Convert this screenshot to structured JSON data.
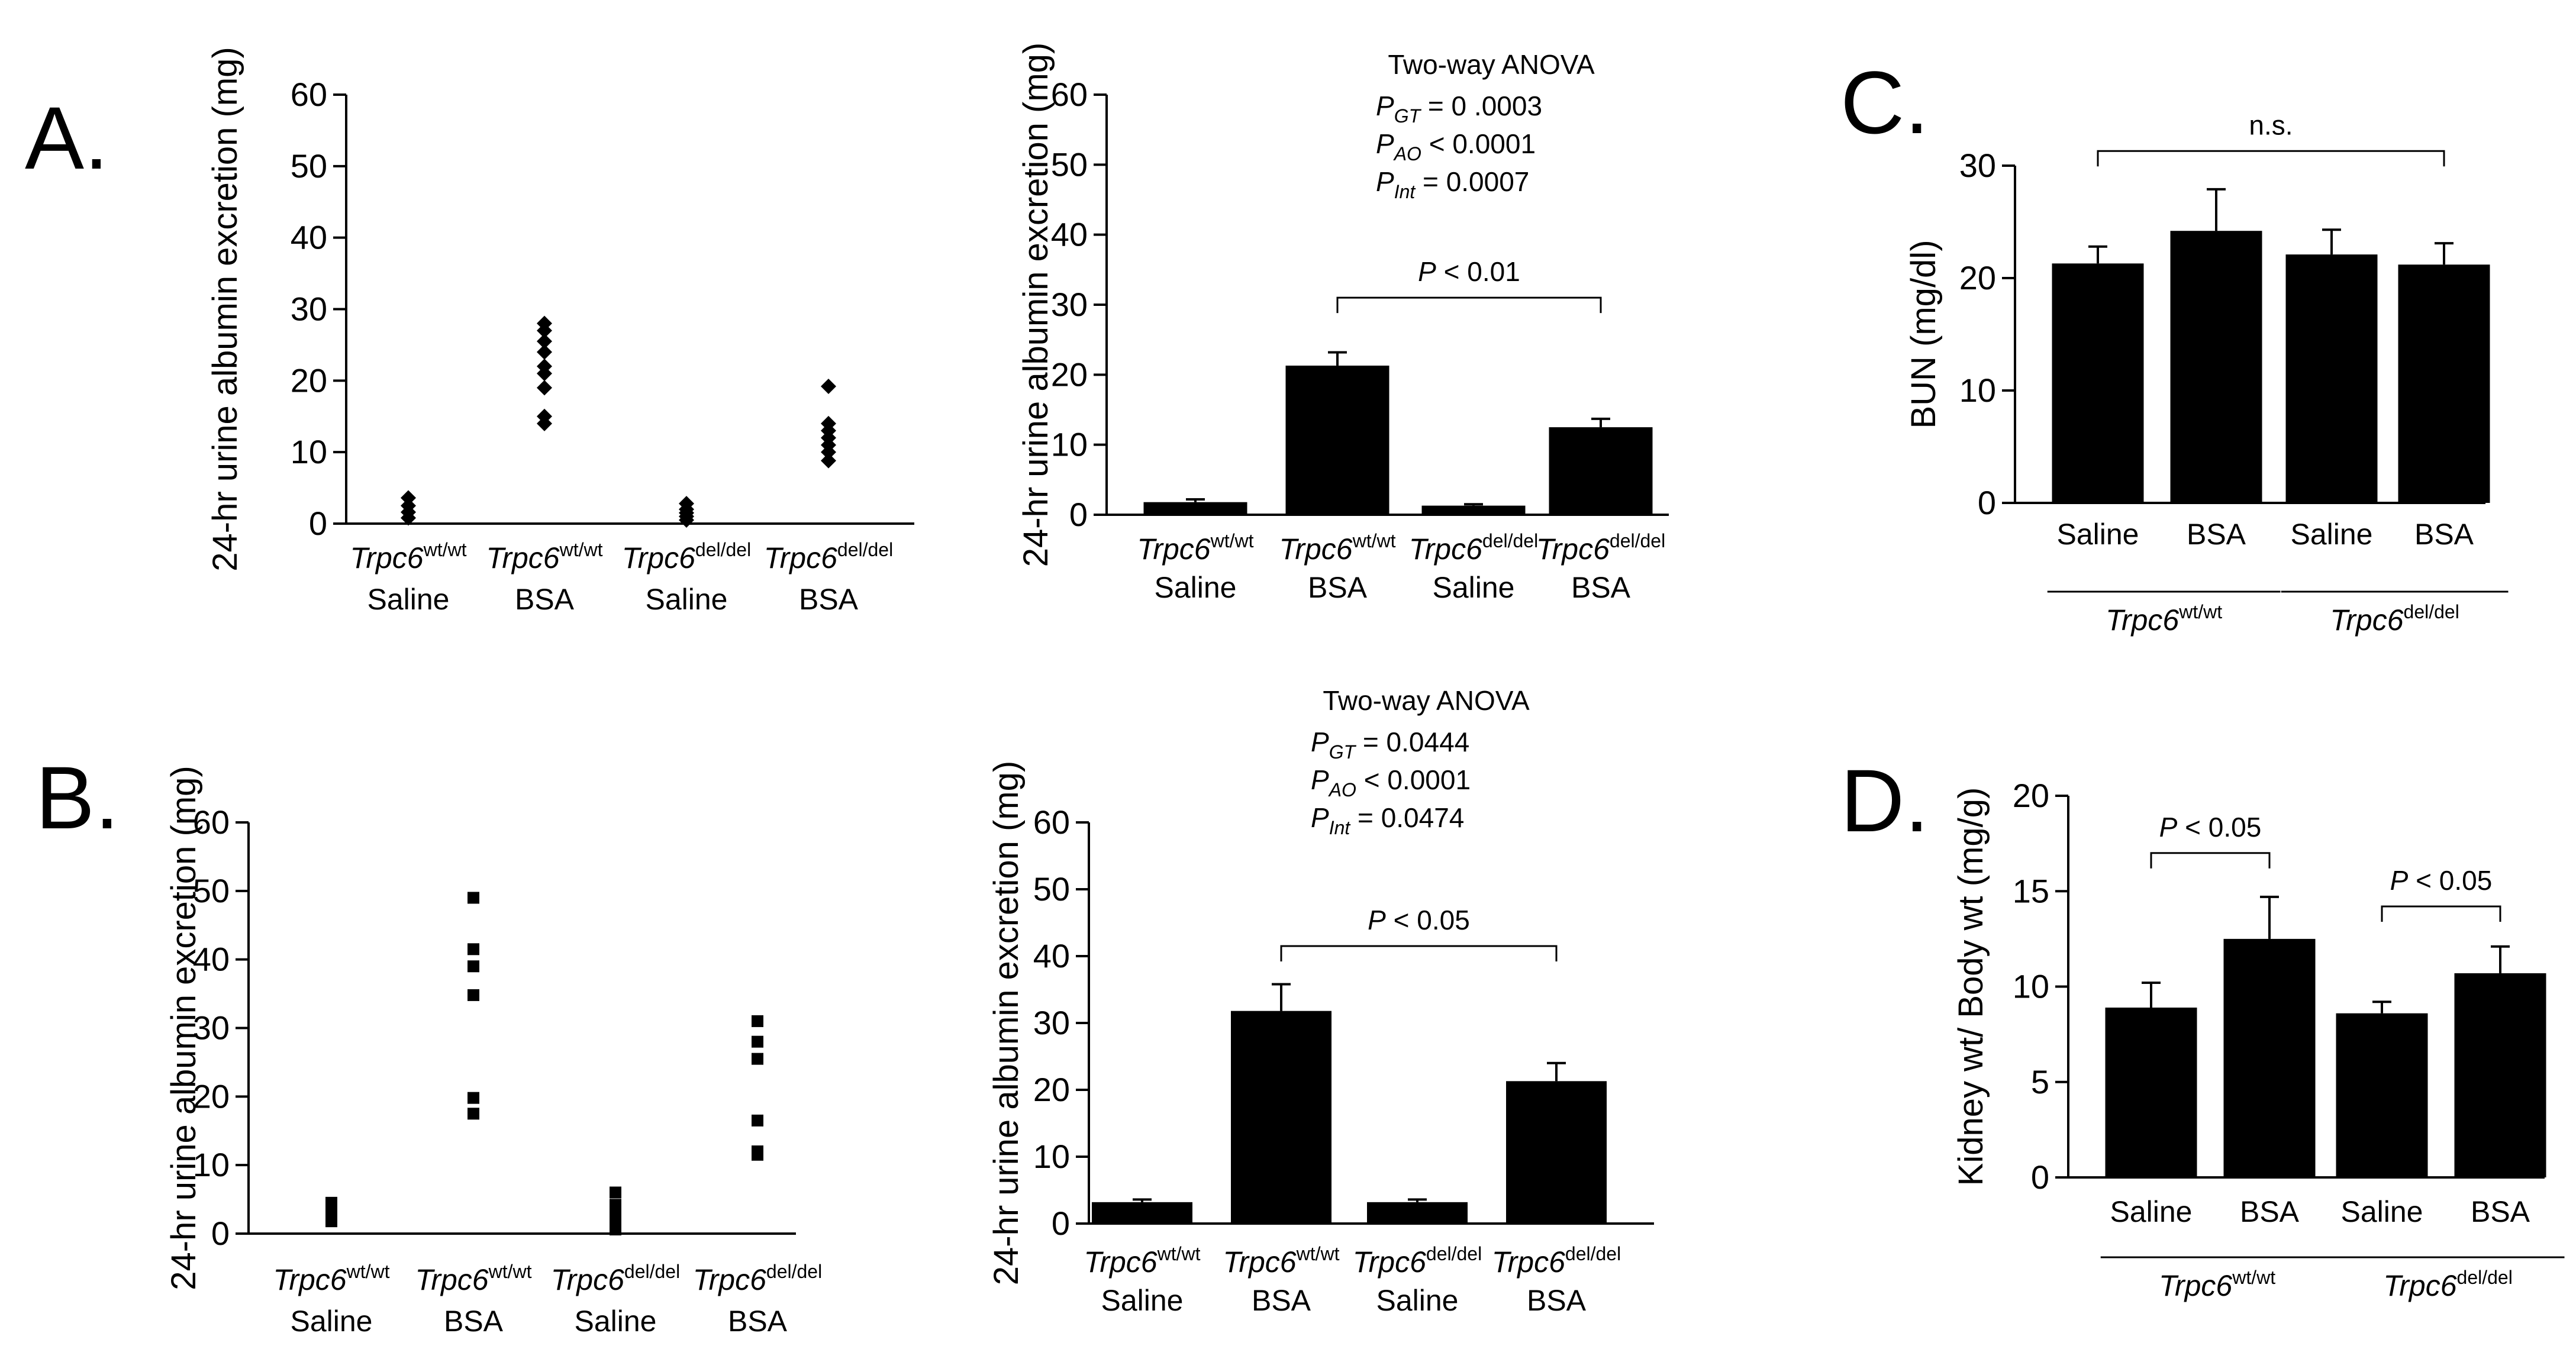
{
  "panels": {
    "A": "A.",
    "B": "B.",
    "C": "C.",
    "D": "D."
  },
  "colors": {
    "bar": "#000000",
    "axis": "#000000",
    "background": "#ffffff"
  },
  "chart_data": [
    {
      "id": "A-scatter",
      "panel": "A",
      "type": "scatter",
      "ylabel": "24-hr urine albumin excretion (mg)",
      "ylim": [
        0,
        60
      ],
      "yticks": [
        0,
        10,
        20,
        30,
        40,
        50,
        60
      ],
      "marker": "diamond",
      "categories": [
        {
          "gene": "Trpc6",
          "sup": "wt/wt",
          "treatment": "Saline"
        },
        {
          "gene": "Trpc6",
          "sup": "wt/wt",
          "treatment": "BSA"
        },
        {
          "gene": "Trpc6",
          "sup": "del/del",
          "treatment": "Saline"
        },
        {
          "gene": "Trpc6",
          "sup": "del/del",
          "treatment": "BSA"
        }
      ],
      "points": [
        [
          0.8,
          1.6,
          2.5,
          3.6
        ],
        [
          14.0,
          15.0,
          19.0,
          21.0,
          22.0,
          24.0,
          25.5,
          27.0,
          28.0
        ],
        [
          0.5,
          1.0,
          1.5,
          2.0,
          2.8
        ],
        [
          8.8,
          10.0,
          11.0,
          12.0,
          13.0,
          14.0,
          19.2
        ]
      ]
    },
    {
      "id": "A-bar",
      "panel": "A",
      "type": "bar",
      "ylabel": "24-hr urine albumin excretion (mg)",
      "ylim": [
        0,
        60
      ],
      "yticks": [
        0,
        10,
        20,
        30,
        40,
        50,
        60
      ],
      "categories": [
        {
          "gene": "Trpc6",
          "sup": "wt/wt",
          "treatment": "Saline"
        },
        {
          "gene": "Trpc6",
          "sup": "wt/wt",
          "treatment": "BSA"
        },
        {
          "gene": "Trpc6",
          "sup": "del/del",
          "treatment": "Saline"
        },
        {
          "gene": "Trpc6",
          "sup": "del/del",
          "treatment": "BSA"
        }
      ],
      "values": [
        1.8,
        21.3,
        1.3,
        12.5
      ],
      "errors": [
        0.4,
        1.9,
        0.2,
        1.2
      ],
      "anova": {
        "title": "Two-way ANOVA",
        "lines": [
          {
            "p": "P",
            "sub": "GT",
            "text": " = 0 .0003"
          },
          {
            "p": "P",
            "sub": "AO",
            "text": " < 0.0001"
          },
          {
            "p": "P",
            "sub": "Int",
            "text": " = 0.0007"
          }
        ]
      },
      "brackets": [
        {
          "from": 1,
          "to": 3,
          "label_p": "P",
          "label": " < 0.01",
          "y": 31
        }
      ]
    },
    {
      "id": "B-scatter",
      "panel": "B",
      "type": "scatter",
      "ylabel": "24-hr urine albumin excretion (mg)",
      "ylim": [
        0,
        60
      ],
      "yticks": [
        0,
        10,
        20,
        30,
        40,
        50,
        60
      ],
      "marker": "square",
      "categories": [
        {
          "gene": "Trpc6",
          "sup": "wt/wt",
          "treatment": "Saline"
        },
        {
          "gene": "Trpc6",
          "sup": "wt/wt",
          "treatment": "BSA"
        },
        {
          "gene": "Trpc6",
          "sup": "del/del",
          "treatment": "Saline"
        },
        {
          "gene": "Trpc6",
          "sup": "del/del",
          "treatment": "BSA"
        }
      ],
      "points": [
        [
          1.8,
          2.8,
          3.8,
          4.5
        ],
        [
          17.5,
          19.8,
          34.8,
          39.0,
          41.5,
          49.0
        ],
        [
          0.6,
          1.6,
          2.4,
          3.2,
          4.2,
          6.0
        ],
        [
          11.5,
          12.0,
          16.5,
          25.5,
          28.0,
          31.0
        ]
      ]
    },
    {
      "id": "B-bar",
      "panel": "B",
      "type": "bar",
      "ylabel": "24-hr urine albumin excretion (mg)",
      "ylim": [
        0,
        60
      ],
      "yticks": [
        0,
        10,
        20,
        30,
        40,
        50,
        60
      ],
      "categories": [
        {
          "gene": "Trpc6",
          "sup": "wt/wt",
          "treatment": "Saline"
        },
        {
          "gene": "Trpc6",
          "sup": "wt/wt",
          "treatment": "BSA"
        },
        {
          "gene": "Trpc6",
          "sup": "del/del",
          "treatment": "Saline"
        },
        {
          "gene": "Trpc6",
          "sup": "del/del",
          "treatment": "BSA"
        }
      ],
      "values": [
        3.2,
        31.8,
        3.2,
        21.3
      ],
      "errors": [
        0.4,
        4.0,
        0.4,
        2.7
      ],
      "anova": {
        "title": "Two-way ANOVA",
        "lines": [
          {
            "p": "P",
            "sub": "GT",
            "text": " = 0.0444"
          },
          {
            "p": "P",
            "sub": "AO",
            "text": " < 0.0001"
          },
          {
            "p": "P",
            "sub": "Int",
            "text": " = 0.0474"
          }
        ]
      },
      "brackets": [
        {
          "from": 1,
          "to": 3,
          "label_p": "P",
          "label": " < 0.05",
          "y": 41.5
        }
      ]
    },
    {
      "id": "C-bar",
      "panel": "C",
      "type": "bar",
      "ylabel": "BUN (mg/dl)",
      "ylim": [
        0,
        30
      ],
      "yticks": [
        0,
        10,
        20,
        30
      ],
      "categories": [
        "Saline",
        "BSA",
        "Saline",
        "BSA"
      ],
      "groups": [
        {
          "gene": "Trpc6",
          "sup": "wt/wt",
          "from": 0,
          "to": 1
        },
        {
          "gene": "Trpc6",
          "sup": "del/del",
          "from": 2,
          "to": 3
        }
      ],
      "values": [
        21.3,
        24.2,
        22.1,
        21.2
      ],
      "errors": [
        1.5,
        3.7,
        2.2,
        1.9
      ],
      "brackets": [
        {
          "from": 0,
          "to": 3,
          "label_p": "",
          "label": "n.s.",
          "y": 31.3
        }
      ]
    },
    {
      "id": "D-bar",
      "panel": "D",
      "type": "bar",
      "ylabel": "Kidney wt/ Body wt (mg/g)",
      "ylim": [
        0,
        20
      ],
      "yticks": [
        0,
        5,
        10,
        15,
        20
      ],
      "categories": [
        "Saline",
        "BSA",
        "Saline",
        "BSA"
      ],
      "groups": [
        {
          "gene": "Trpc6",
          "sup": "wt/wt",
          "from": 0,
          "to": 1
        },
        {
          "gene": "Trpc6",
          "sup": "del/del",
          "from": 2,
          "to": 3
        }
      ],
      "values": [
        8.9,
        12.5,
        8.6,
        10.7
      ],
      "errors": [
        1.3,
        2.2,
        0.6,
        1.4
      ],
      "brackets": [
        {
          "from": 0,
          "to": 1,
          "label_p": "P",
          "label": " < 0.05",
          "y": 17.0
        },
        {
          "from": 2,
          "to": 3,
          "label_p": "P",
          "label": " < 0.05",
          "y": 14.2
        }
      ]
    }
  ]
}
